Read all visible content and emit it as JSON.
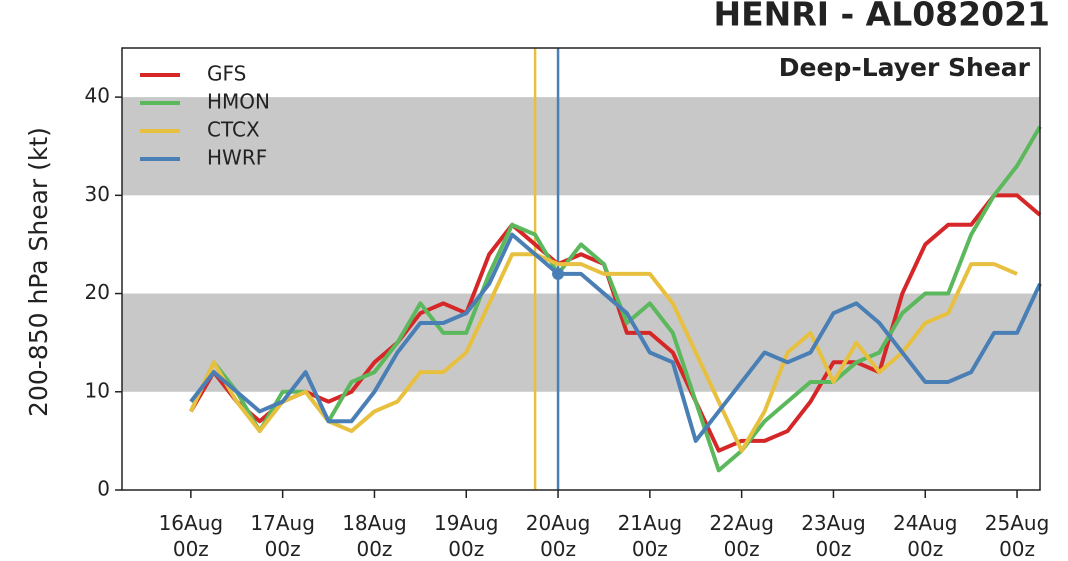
{
  "chart_data": {
    "type": "line",
    "title": "HENRI - AL082021",
    "annotation": "Deep-Layer Shear",
    "ylabel": "200-850 hPa Shear (kt)",
    "x": [
      "16Aug 00z",
      "16Aug 06z",
      "16Aug 12z",
      "16Aug 18z",
      "17Aug 00z",
      "17Aug 06z",
      "17Aug 12z",
      "17Aug 18z",
      "18Aug 00z",
      "18Aug 06z",
      "18Aug 12z",
      "18Aug 18z",
      "19Aug 00z",
      "19Aug 06z",
      "19Aug 12z",
      "19Aug 18z",
      "20Aug 00z",
      "20Aug 06z",
      "20Aug 12z",
      "20Aug 18z",
      "21Aug 00z",
      "21Aug 06z",
      "21Aug 12z",
      "21Aug 18z",
      "22Aug 00z",
      "22Aug 06z",
      "22Aug 12z",
      "22Aug 18z",
      "23Aug 00z",
      "23Aug 06z",
      "23Aug 12z",
      "23Aug 18z",
      "24Aug 00z",
      "24Aug 06z",
      "24Aug 12z",
      "24Aug 18z",
      "25Aug 00z",
      "25Aug 06z"
    ],
    "series": [
      {
        "name": "GFS",
        "color": "#d62728",
        "values": [
          8,
          12,
          9,
          7,
          9,
          10,
          9,
          10,
          13,
          15,
          18,
          19,
          18,
          24,
          27,
          25,
          23,
          24,
          23,
          16,
          16,
          14,
          9,
          4,
          5,
          5,
          6,
          9,
          13,
          13,
          12,
          20,
          25,
          27,
          27,
          30,
          30,
          28
        ]
      },
      {
        "name": "HMON",
        "color": "#5cb85c",
        "values": [
          8,
          13,
          10,
          6,
          10,
          10,
          7,
          11,
          12,
          15,
          19,
          16,
          16,
          22,
          27,
          26,
          22,
          25,
          23,
          17,
          19,
          16,
          9,
          2,
          4,
          7,
          9,
          11,
          11,
          13,
          14,
          18,
          20,
          20,
          26,
          30,
          33,
          37
        ]
      },
      {
        "name": "CTCX",
        "color": "#e8c040",
        "values": [
          8,
          13,
          9,
          6,
          9,
          10,
          7,
          6,
          8,
          9,
          12,
          12,
          14,
          19,
          24,
          24,
          23,
          23,
          22,
          22,
          22,
          19,
          14,
          9,
          4,
          8,
          14,
          16,
          11,
          15,
          12,
          14,
          17,
          18,
          23,
          23,
          22,
          null
        ]
      },
      {
        "name": "HWRF",
        "color": "#4a7fb5",
        "values": [
          9,
          12,
          10,
          8,
          9,
          12,
          7,
          7,
          10,
          14,
          17,
          17,
          18,
          21,
          26,
          24,
          22,
          22,
          20,
          18,
          14,
          13,
          5,
          8,
          11,
          14,
          13,
          14,
          18,
          19,
          17,
          14,
          11,
          11,
          12,
          16,
          16,
          21
        ]
      }
    ],
    "vlines": [
      {
        "x": "19Aug 18z",
        "color": "#e8c040"
      },
      {
        "x": "20Aug 00z",
        "color": "#4a7fb5"
      }
    ],
    "marker": {
      "x": "20Aug 00z",
      "y": 22,
      "color": "#4a7fb5"
    },
    "bands": [
      [
        10,
        20
      ],
      [
        30,
        40
      ]
    ],
    "xlim": [
      "15Aug 06z",
      "25Aug 06z"
    ],
    "xticks": [
      "16Aug 00z",
      "17Aug 00z",
      "18Aug 00z",
      "19Aug 00z",
      "20Aug 00z",
      "21Aug 00z",
      "22Aug 00z",
      "23Aug 00z",
      "24Aug 00z",
      "25Aug 00z"
    ],
    "ylim": [
      0,
      45
    ],
    "yticks": [
      0,
      10,
      20,
      30,
      40
    ],
    "legend": "upper left"
  }
}
